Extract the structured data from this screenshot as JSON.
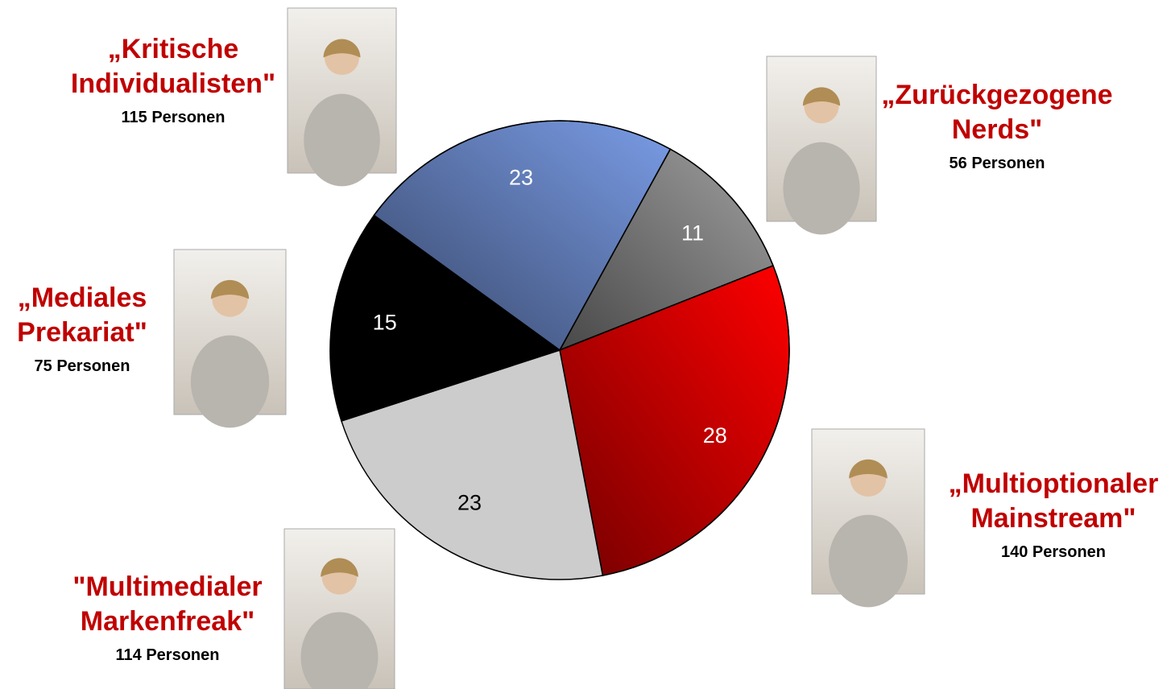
{
  "chart_data": {
    "type": "pie",
    "categories": [
      "„Zurückgezogene Nerds\"",
      "„Multioptionaler Mainstream\"",
      "\"Multimedialer Markenfreak\"",
      "„Mediales Prekariat\"",
      "„Kritische Individualisten\""
    ],
    "sublabels": [
      "56 Personen",
      "140 Personen",
      "114 Personen",
      "75 Personen",
      "115 Personen"
    ],
    "values": [
      11,
      28,
      23,
      15,
      23
    ],
    "colors": [
      "#a0a0a0",
      "#ff0000",
      "#cccccc",
      "#000000",
      "#7a9ce6"
    ]
  }
}
